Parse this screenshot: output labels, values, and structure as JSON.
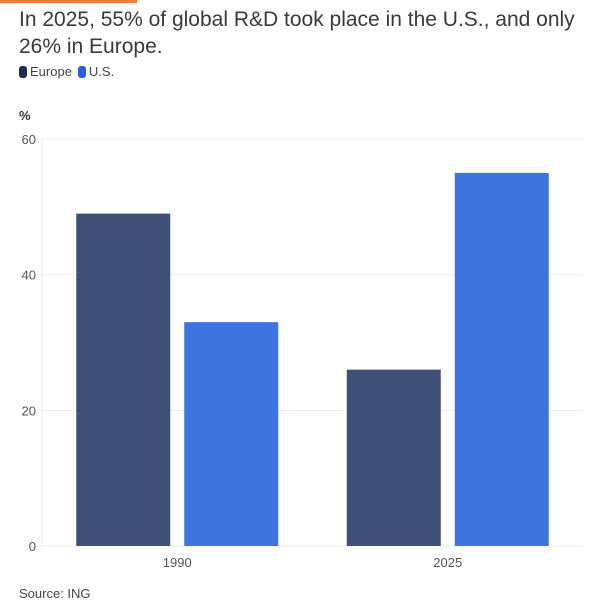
{
  "chart_data": {
    "type": "bar",
    "title": "In 2025, 55% of global R&D took place in the U.S., and only 26% in Europe.",
    "ylabel": "%",
    "categories": [
      "1990",
      "2025"
    ],
    "series": [
      {
        "name": "Europe",
        "color": "#3e5075",
        "values": [
          49,
          26
        ]
      },
      {
        "name": "U.S.",
        "color": "#3f74de",
        "values": [
          33,
          55
        ]
      }
    ],
    "ylim": [
      0,
      60
    ],
    "yticks": [
      0,
      20,
      40,
      60
    ],
    "grid": true,
    "legend": "top-left",
    "source": "Source: ING"
  },
  "accent_color": "#f07c3a"
}
